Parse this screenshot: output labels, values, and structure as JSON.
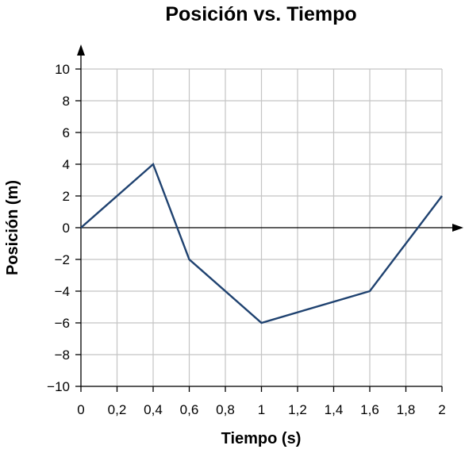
{
  "chart_data": {
    "type": "line",
    "title": "Posición vs. Tiempo",
    "xlabel": "Tiempo (s)",
    "ylabel": "Posición (m)",
    "xlim": [
      0,
      2
    ],
    "ylim": [
      -10,
      10
    ],
    "grid": true,
    "x_ticks": [
      0,
      0.2,
      0.4,
      0.6,
      0.8,
      1,
      1.2,
      1.4,
      1.6,
      1.8,
      2
    ],
    "x_tick_labels": [
      "0",
      "0,2",
      "0,4",
      "0,6",
      "0,8",
      "1",
      "1,2",
      "1,4",
      "1,6",
      "1,8",
      "2"
    ],
    "y_ticks": [
      10,
      8,
      6,
      4,
      2,
      0,
      -2,
      -4,
      -6,
      -8,
      -10
    ],
    "y_tick_labels": [
      "10",
      "8",
      "6",
      "4",
      "2",
      "0",
      "−2",
      "−4",
      "−6",
      "−8",
      "−10"
    ],
    "series": [
      {
        "color": "#1f4270",
        "x": [
          0,
          0.4,
          0.6,
          1.0,
          1.6,
          2.0
        ],
        "y": [
          0,
          4,
          -2,
          -6,
          -4,
          2
        ]
      }
    ]
  }
}
